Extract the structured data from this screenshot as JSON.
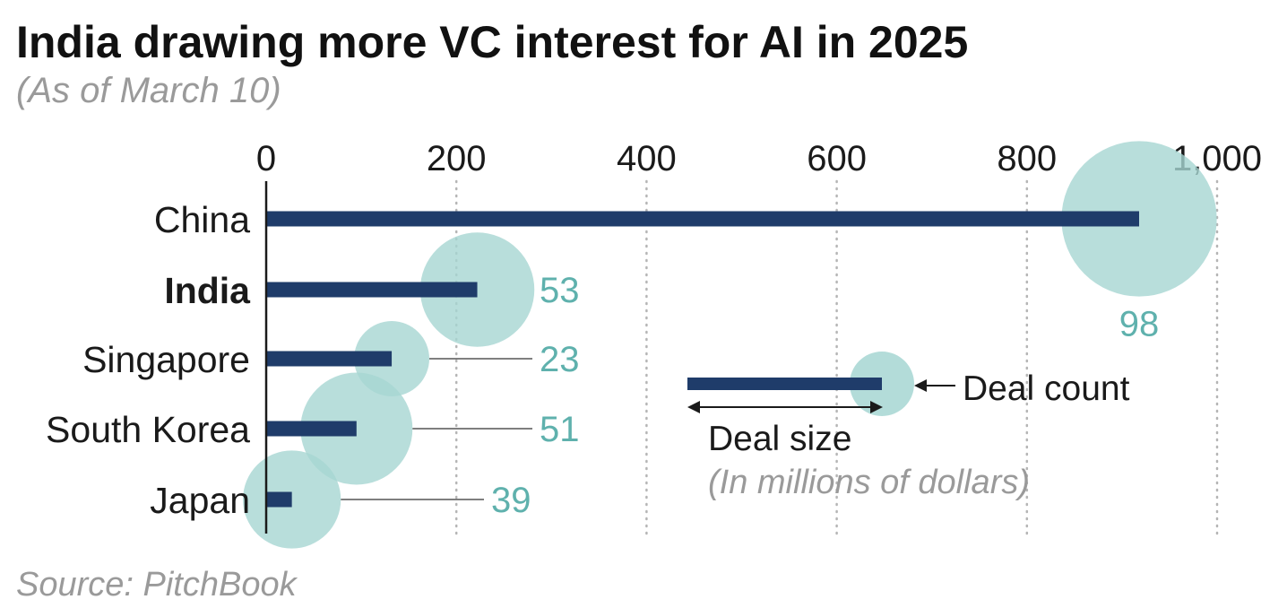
{
  "colors": {
    "bar": "#1f3c6a",
    "bubble": "#a6d6d2",
    "count_text": "#5fb1ad",
    "grid": "#b5b5b5",
    "axis": "#1a1a1a"
  },
  "chart_data": {
    "type": "bar",
    "orientation": "horizontal",
    "title": "India drawing more VC interest for AI in 2025",
    "subtitle": "(As of March 10)",
    "source": "Source: PitchBook",
    "xlim": [
      0,
      1000
    ],
    "x_ticks": [
      0,
      200,
      400,
      600,
      800,
      1000
    ],
    "x_tick_labels": [
      "0",
      "200",
      "400",
      "600",
      "800",
      "1,000"
    ],
    "grid": "vertical dotted",
    "categories": [
      "China",
      "India",
      "Singapore",
      "South Korea",
      "Japan"
    ],
    "highlight_category": "India",
    "series": [
      {
        "name": "Deal size",
        "values": [
          918,
          222,
          132,
          95,
          27
        ]
      },
      {
        "name": "Deal count",
        "values": [
          98,
          53,
          23,
          51,
          39
        ],
        "labels": [
          "98",
          "53",
          "23",
          "51",
          "39"
        ]
      }
    ],
    "legend": {
      "placement": "center-right",
      "deal_count_label": "Deal count",
      "deal_size_label": "Deal size",
      "unit_note": "(In millions of dollars)"
    }
  }
}
